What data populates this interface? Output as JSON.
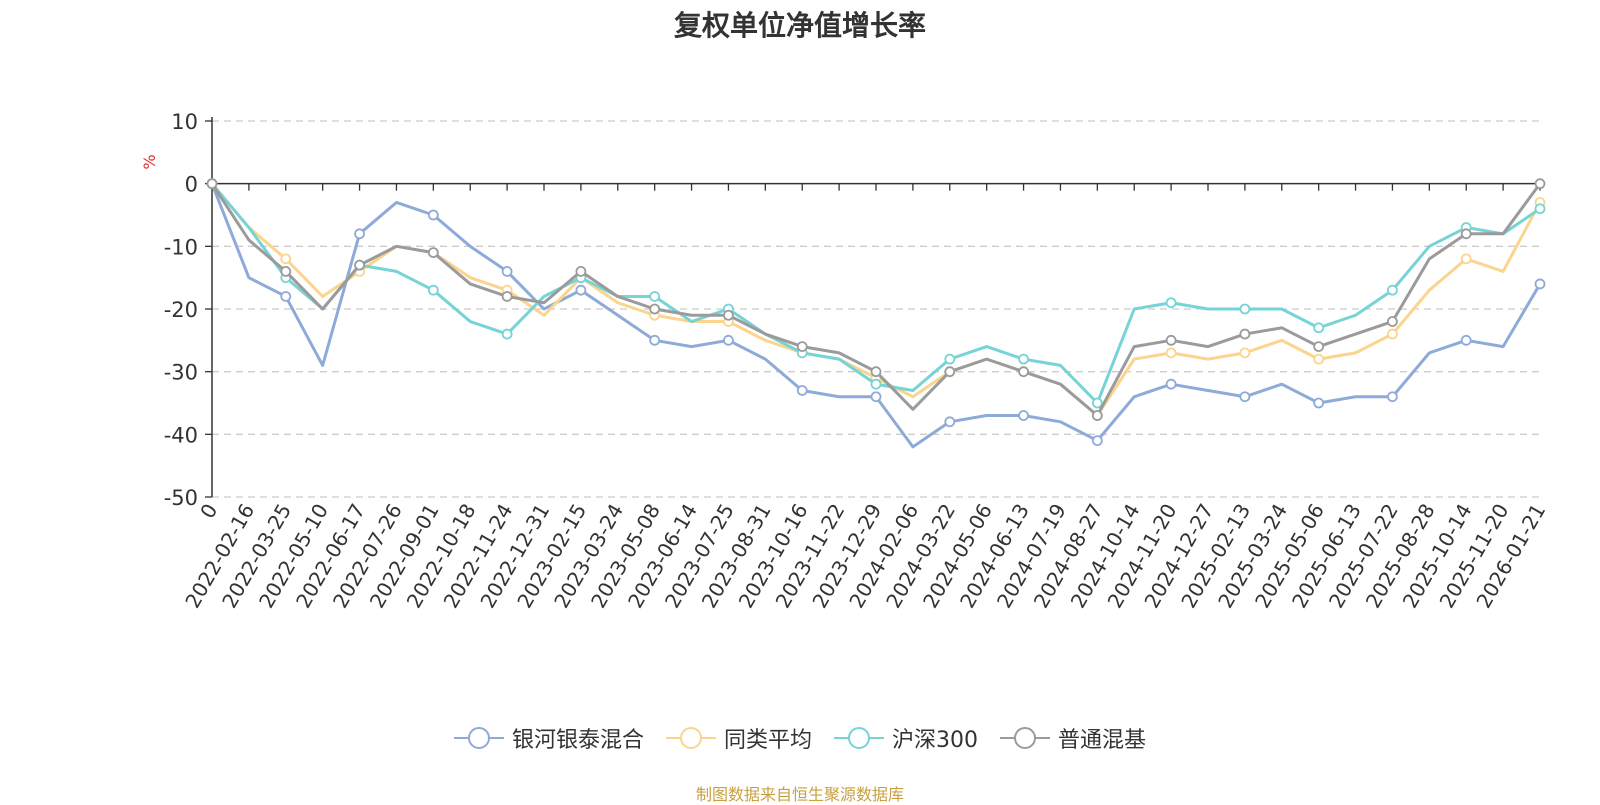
{
  "chart_data": {
    "type": "line",
    "title": "复权单位净值增长率",
    "ylabel": "%",
    "ylim": [
      -50,
      10
    ],
    "yticks": [
      10,
      0,
      -10,
      -20,
      -30,
      -40,
      -50
    ],
    "grid": true,
    "legend_position": "bottom",
    "x_tick_labels": [
      "0",
      "2022-02-16",
      "2022-03-25",
      "2022-05-10",
      "2022-06-17",
      "2022-07-26",
      "2022-09-01",
      "2022-10-18",
      "2022-11-24",
      "2022-12-31",
      "2023-02-15",
      "2023-03-24",
      "2023-05-08",
      "2023-06-14",
      "2023-07-25",
      "2023-08-31",
      "2023-10-16",
      "2023-11-22",
      "2023-12-29",
      "2024-02-06",
      "2024-03-22",
      "2024-05-06",
      "2024-06-13",
      "2024-07-19",
      "2024-08-27",
      "2024-10-14",
      "2024-11-20",
      "2024-12-27",
      "2025-02-13",
      "2025-03-24",
      "2025-05-06",
      "2025-06-13",
      "2025-07-22",
      "2025-08-28",
      "2025-10-14",
      "2025-11-20",
      "2026-01-21"
    ],
    "x_positions": [
      0,
      1,
      2,
      3,
      4,
      5,
      6,
      7,
      8,
      9,
      10,
      11,
      12,
      13,
      14,
      15,
      16,
      17,
      18,
      19,
      20,
      21,
      22,
      23,
      24,
      25,
      26,
      27,
      28,
      29,
      30,
      31,
      32,
      33,
      34,
      35,
      36
    ],
    "series": [
      {
        "name": "银河银泰混合",
        "color": "#8eaad8",
        "values": [
          0,
          -15,
          -18,
          -29,
          -8,
          -3,
          -5,
          -10,
          -14,
          -20,
          -17,
          -21,
          -25,
          -26,
          -25,
          -28,
          -33,
          -34,
          -34,
          -42,
          -38,
          -37,
          -37,
          -38,
          -41,
          -34,
          -32,
          -33,
          -34,
          -32,
          -35,
          -34,
          -34,
          -27,
          -25,
          -26,
          -16
        ]
      },
      {
        "name": "同类平均",
        "color": "#fbd48d",
        "values": [
          0,
          -7,
          -12,
          -18,
          -14,
          -10,
          -11,
          -15,
          -17,
          -21,
          -15,
          -19,
          -21,
          -22,
          -22,
          -25,
          -27,
          -28,
          -31,
          -34,
          -30,
          -28,
          -30,
          -32,
          -37,
          -28,
          -27,
          -28,
          -27,
          -25,
          -28,
          -27,
          -24,
          -17,
          -12,
          -14,
          -3
        ]
      },
      {
        "name": "沪深300",
        "color": "#76d3d6",
        "values": [
          0,
          -7,
          -15,
          -20,
          -13,
          -14,
          -17,
          -22,
          -24,
          -18,
          -15,
          -18,
          -18,
          -22,
          -20,
          -24,
          -27,
          -28,
          -32,
          -33,
          -28,
          -26,
          -28,
          -29,
          -35,
          -20,
          -19,
          -20,
          -20,
          -20,
          -23,
          -21,
          -17,
          -10,
          -7,
          -8,
          -4
        ]
      },
      {
        "name": "普通混基",
        "color": "#9b9b9b",
        "values": [
          0,
          -9,
          -14,
          -20,
          -13,
          -10,
          -11,
          -16,
          -18,
          -19,
          -14,
          -18,
          -20,
          -21,
          -21,
          -24,
          -26,
          -27,
          -30,
          -36,
          -30,
          -28,
          -30,
          -32,
          -37,
          -26,
          -25,
          -26,
          -24,
          -23,
          -26,
          -24,
          -22,
          -12,
          -8,
          -8,
          0
        ]
      }
    ]
  },
  "legend": [
    "银河银泰混合",
    "同类平均",
    "沪深300",
    "普通混基"
  ],
  "source_note": "制图数据来自恒生聚源数据库"
}
